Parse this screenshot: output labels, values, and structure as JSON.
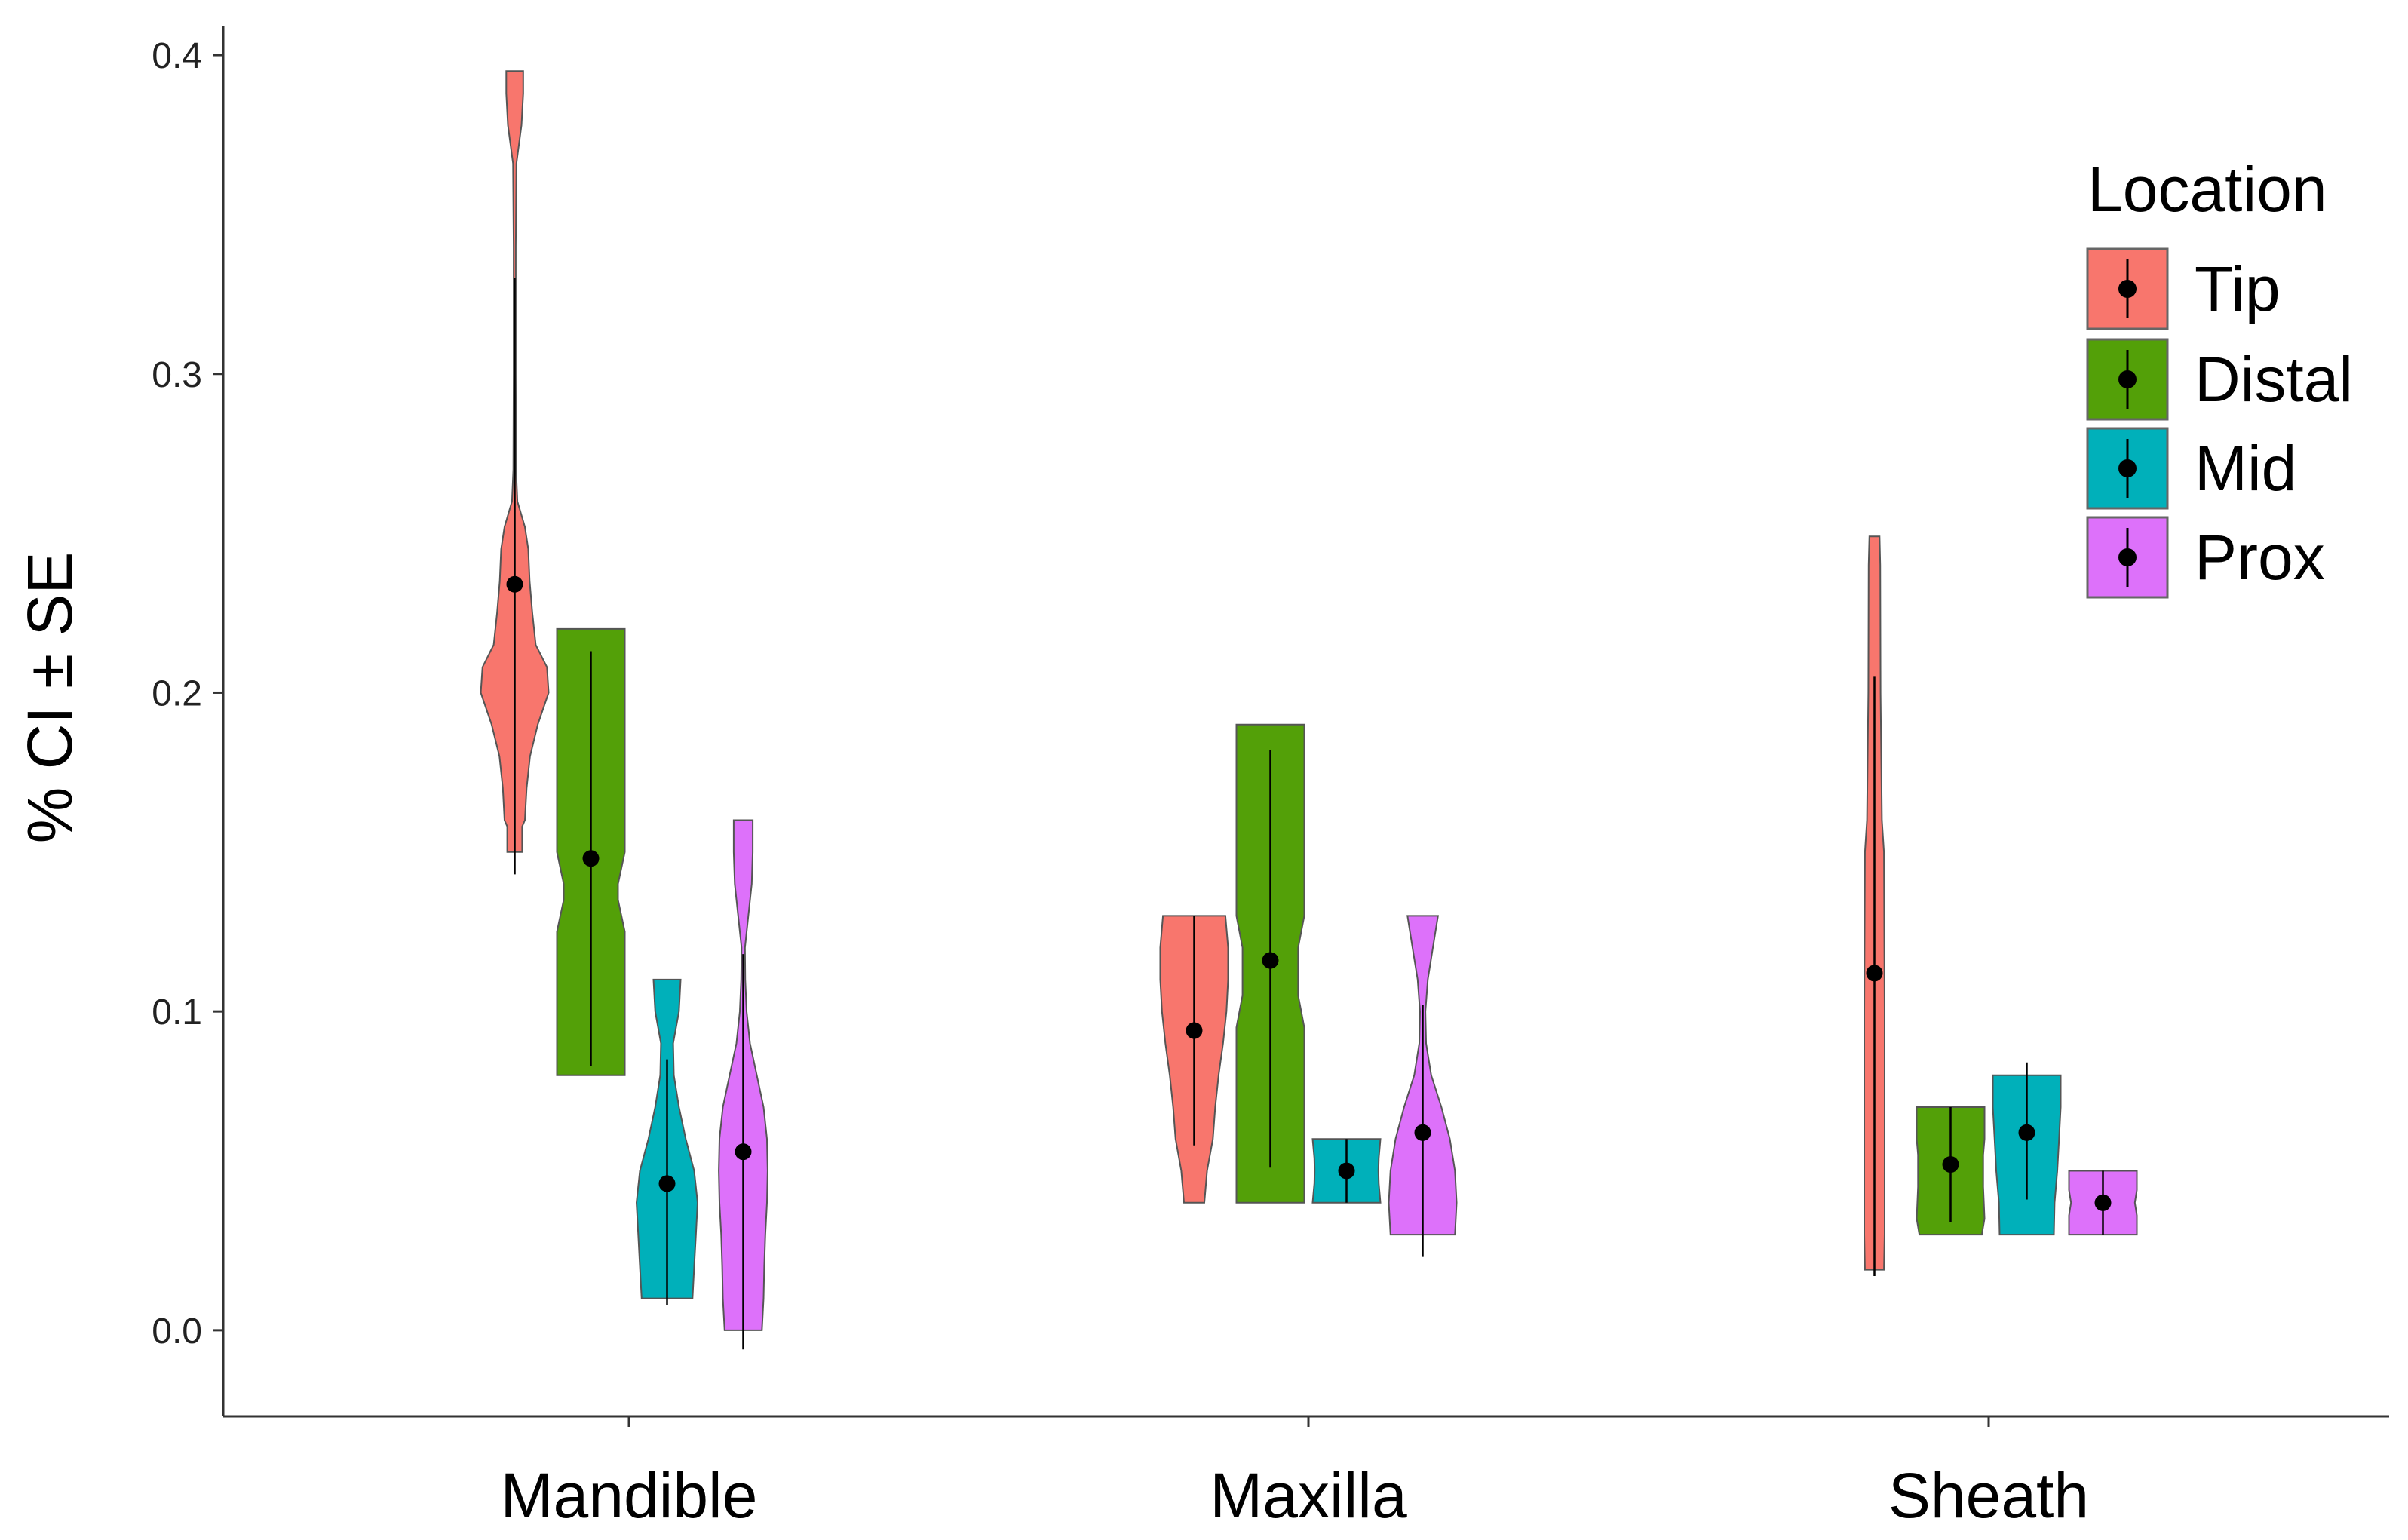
{
  "chart_data": {
    "type": "violin",
    "ylabel": "% CI ± SE",
    "xlabel": "",
    "ylim": [
      -0.027,
      0.409
    ],
    "y_ticks": [
      0.0,
      0.1,
      0.2,
      0.3,
      0.4
    ],
    "y_tick_labels": [
      "0.0",
      "0.1",
      "0.2",
      "0.3",
      "0.4"
    ],
    "categories": [
      "Mandible",
      "Maxilla",
      "Sheath"
    ],
    "grid": false,
    "legend": {
      "title": "Location",
      "position": "top-right",
      "entries": [
        "Tip",
        "Distal",
        "Mid",
        "Prox"
      ]
    },
    "series": [
      {
        "name": "Tip",
        "color": "#F8766D",
        "points": [
          {
            "category": "Mandible",
            "mean": 0.234,
            "se_low": 0.143,
            "se_high": 0.33,
            "min": 0.15,
            "max": 0.395,
            "profile": [
              [
                0.15,
                0.22
              ],
              [
                0.158,
                0.22
              ],
              [
                0.16,
                0.3
              ],
              [
                0.17,
                0.35
              ],
              [
                0.18,
                0.45
              ],
              [
                0.19,
                0.68
              ],
              [
                0.2,
                1.0
              ],
              [
                0.208,
                0.95
              ],
              [
                0.215,
                0.62
              ],
              [
                0.225,
                0.52
              ],
              [
                0.235,
                0.44
              ],
              [
                0.245,
                0.4
              ],
              [
                0.252,
                0.3
              ],
              [
                0.26,
                0.08
              ],
              [
                0.27,
                0.04
              ],
              [
                0.3,
                0.03
              ],
              [
                0.34,
                0.03
              ],
              [
                0.366,
                0.05
              ],
              [
                0.378,
                0.2
              ],
              [
                0.388,
                0.25
              ],
              [
                0.395,
                0.25
              ]
            ]
          },
          {
            "category": "Maxilla",
            "mean": 0.094,
            "se_low": 0.058,
            "se_high": 0.13,
            "min": 0.04,
            "max": 0.13,
            "profile": [
              [
                0.04,
                0.3
              ],
              [
                0.05,
                0.38
              ],
              [
                0.06,
                0.55
              ],
              [
                0.07,
                0.62
              ],
              [
                0.08,
                0.72
              ],
              [
                0.09,
                0.85
              ],
              [
                0.1,
                0.95
              ],
              [
                0.11,
                1.0
              ],
              [
                0.12,
                1.0
              ],
              [
                0.13,
                0.92
              ]
            ]
          },
          {
            "category": "Sheath",
            "mean": 0.112,
            "se_low": 0.017,
            "se_high": 0.205,
            "min": 0.019,
            "max": 0.249,
            "profile": [
              [
                0.019,
                0.28
              ],
              [
                0.03,
                0.3
              ],
              [
                0.06,
                0.3
              ],
              [
                0.1,
                0.3
              ],
              [
                0.15,
                0.28
              ],
              [
                0.16,
                0.22
              ],
              [
                0.2,
                0.18
              ],
              [
                0.24,
                0.17
              ],
              [
                0.249,
                0.15
              ]
            ]
          }
        ]
      },
      {
        "name": "Distal",
        "color": "#53A008",
        "points": [
          {
            "category": "Mandible",
            "mean": 0.148,
            "se_low": 0.083,
            "se_high": 0.213,
            "min": 0.08,
            "max": 0.22,
            "profile": [
              [
                0.08,
                1.0
              ],
              [
                0.125,
                1.0
              ],
              [
                0.135,
                0.8
              ],
              [
                0.14,
                0.8
              ],
              [
                0.15,
                1.0
              ],
              [
                0.22,
                1.0
              ]
            ]
          },
          {
            "category": "Maxilla",
            "mean": 0.116,
            "se_low": 0.051,
            "se_high": 0.182,
            "min": 0.04,
            "max": 0.19,
            "profile": [
              [
                0.04,
                1.0
              ],
              [
                0.095,
                1.0
              ],
              [
                0.105,
                0.82
              ],
              [
                0.12,
                0.82
              ],
              [
                0.13,
                1.0
              ],
              [
                0.19,
                1.0
              ]
            ]
          },
          {
            "category": "Sheath",
            "mean": 0.052,
            "se_low": 0.034,
            "se_high": 0.07,
            "min": 0.03,
            "max": 0.07,
            "profile": [
              [
                0.03,
                0.92
              ],
              [
                0.035,
                1.0
              ],
              [
                0.045,
                0.96
              ],
              [
                0.055,
                0.96
              ],
              [
                0.06,
                1.0
              ],
              [
                0.07,
                1.0
              ]
            ]
          }
        ]
      },
      {
        "name": "Mid",
        "color": "#00B0BA",
        "points": [
          {
            "category": "Mandible",
            "mean": 0.046,
            "se_low": 0.008,
            "se_high": 0.085,
            "min": 0.01,
            "max": 0.11,
            "profile": [
              [
                0.01,
                0.75
              ],
              [
                0.02,
                0.8
              ],
              [
                0.03,
                0.85
              ],
              [
                0.04,
                0.9
              ],
              [
                0.05,
                0.8
              ],
              [
                0.06,
                0.55
              ],
              [
                0.07,
                0.35
              ],
              [
                0.08,
                0.2
              ],
              [
                0.09,
                0.18
              ],
              [
                0.1,
                0.35
              ],
              [
                0.11,
                0.4
              ]
            ]
          },
          {
            "category": "Maxilla",
            "mean": 0.05,
            "se_low": 0.04,
            "se_high": 0.06,
            "min": 0.04,
            "max": 0.06,
            "profile": [
              [
                0.04,
                1.0
              ],
              [
                0.046,
                0.95
              ],
              [
                0.05,
                0.94
              ],
              [
                0.054,
                0.95
              ],
              [
                0.06,
                1.0
              ]
            ]
          },
          {
            "category": "Sheath",
            "mean": 0.062,
            "se_low": 0.041,
            "se_high": 0.084,
            "min": 0.03,
            "max": 0.08,
            "profile": [
              [
                0.03,
                0.8
              ],
              [
                0.04,
                0.82
              ],
              [
                0.05,
                0.9
              ],
              [
                0.06,
                0.95
              ],
              [
                0.07,
                1.0
              ],
              [
                0.08,
                1.0
              ]
            ]
          }
        ]
      },
      {
        "name": "Prox",
        "color": "#DD71FA",
        "points": [
          {
            "category": "Mandible",
            "mean": 0.056,
            "se_low": -0.006,
            "se_high": 0.118,
            "min": 0.0,
            "max": 0.16,
            "profile": [
              [
                0.0,
                0.55
              ],
              [
                0.01,
                0.6
              ],
              [
                0.02,
                0.62
              ],
              [
                0.03,
                0.65
              ],
              [
                0.04,
                0.7
              ],
              [
                0.05,
                0.72
              ],
              [
                0.06,
                0.7
              ],
              [
                0.07,
                0.6
              ],
              [
                0.08,
                0.4
              ],
              [
                0.09,
                0.2
              ],
              [
                0.1,
                0.1
              ],
              [
                0.11,
                0.06
              ],
              [
                0.12,
                0.05
              ],
              [
                0.13,
                0.15
              ],
              [
                0.14,
                0.25
              ],
              [
                0.15,
                0.28
              ],
              [
                0.16,
                0.28
              ]
            ]
          },
          {
            "category": "Maxilla",
            "mean": 0.062,
            "se_low": 0.023,
            "se_high": 0.102,
            "min": 0.03,
            "max": 0.13,
            "profile": [
              [
                0.03,
                0.95
              ],
              [
                0.04,
                1.0
              ],
              [
                0.05,
                0.95
              ],
              [
                0.06,
                0.8
              ],
              [
                0.07,
                0.55
              ],
              [
                0.08,
                0.25
              ],
              [
                0.09,
                0.1
              ],
              [
                0.1,
                0.08
              ],
              [
                0.11,
                0.15
              ],
              [
                0.12,
                0.3
              ],
              [
                0.13,
                0.45
              ]
            ]
          },
          {
            "category": "Sheath",
            "mean": 0.04,
            "se_low": 0.03,
            "se_high": 0.05,
            "min": 0.03,
            "max": 0.05,
            "profile": [
              [
                0.03,
                1.0
              ],
              [
                0.036,
                1.0
              ],
              [
                0.04,
                0.94
              ],
              [
                0.044,
                1.0
              ],
              [
                0.05,
                1.0
              ]
            ]
          }
        ]
      }
    ]
  }
}
